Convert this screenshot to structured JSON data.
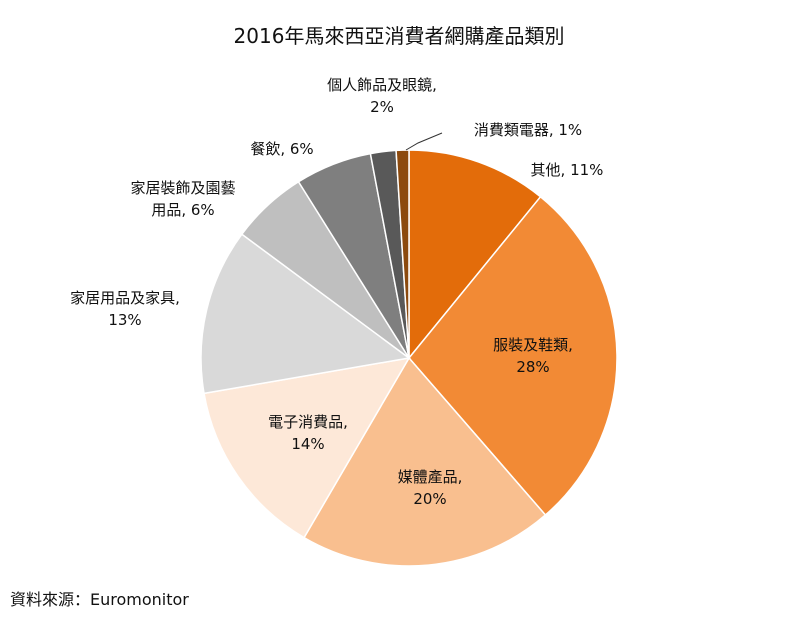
{
  "chart_data": {
    "type": "pie",
    "title": "2016年馬來西亞消費者網購產品類別",
    "source": "資料來源：Euromonitor",
    "slices": [
      {
        "label": "其他",
        "value": 11,
        "color": "#E36C0A",
        "label_lines": [
          "其他, 11%"
        ]
      },
      {
        "label": "服裝及鞋類",
        "value": 28,
        "color": "#F28A35",
        "label_lines": [
          "服裝及鞋類,",
          "28%"
        ]
      },
      {
        "label": "媒體產品",
        "value": 20,
        "color": "#F9BF8F",
        "label_lines": [
          "媒體產品,",
          "20%"
        ]
      },
      {
        "label": "電子消費品",
        "value": 14,
        "color": "#FDE8D8",
        "label_lines": [
          "電子消費品,",
          "14%"
        ]
      },
      {
        "label": "家居用品及家具",
        "value": 13,
        "color": "#D9D9D9",
        "label_lines": [
          "家居用品及家具,",
          "13%"
        ]
      },
      {
        "label": "家居裝飾及園藝用品",
        "value": 6,
        "color": "#BFBFBF",
        "label_lines": [
          "家居裝飾及園藝",
          "用品, 6%"
        ]
      },
      {
        "label": "餐飲",
        "value": 6,
        "color": "#7F7F7F",
        "label_lines": [
          "餐飲, 6%"
        ]
      },
      {
        "label": "個人飾品及眼鏡",
        "value": 2,
        "color": "#595959",
        "label_lines": [
          "個人飾品及眼鏡,",
          "2%"
        ]
      },
      {
        "label": "消費類電器",
        "value": 1,
        "color": "#8C4A0E",
        "label_lines": [
          "消費類電器, 1%"
        ]
      }
    ]
  }
}
